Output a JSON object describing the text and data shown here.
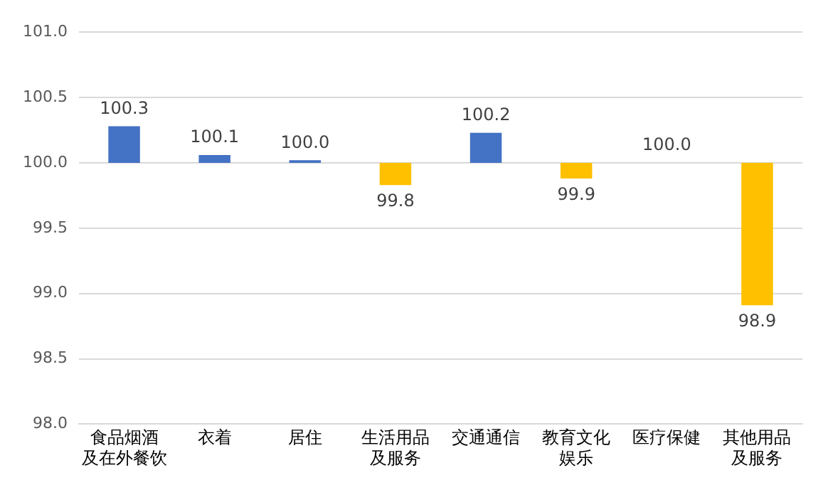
{
  "chart_data": {
    "type": "bar",
    "categories": [
      "食品烟酒及在外餐饮",
      "衣着",
      "居住",
      "生活用品及服务",
      "交通通信",
      "教育文化娱乐",
      "医疗保健",
      "其他用品及服务"
    ],
    "base": [
      100,
      100,
      100,
      100,
      100,
      100,
      null,
      100
    ],
    "values": [
      0.28,
      0.06,
      0.02,
      -0.17,
      0.23,
      -0.12,
      null,
      -1.09
    ],
    "colors": [
      "#4472c4",
      "#4472c4",
      "#4472c4",
      "#ffc000",
      "#4472c4",
      "#ffc000",
      "#4472c4",
      "#ffc000"
    ],
    "value_labels": [
      "100.3",
      "100.1",
      "100.0",
      "99.8",
      "100.2",
      "99.9",
      "100.0",
      "98.9"
    ],
    "ylim": [
      98,
      101
    ],
    "yticks": [
      {
        "value": 98,
        "label": "98.0"
      },
      {
        "value": 98.5,
        "label": "98.5"
      },
      {
        "value": 99,
        "label": "99.0"
      },
      {
        "value": 99.5,
        "label": "99.5"
      },
      {
        "value": 100,
        "label": "100.0"
      },
      {
        "value": 100.5,
        "label": "100.5"
      },
      {
        "value": 101,
        "label": "101.0"
      }
    ],
    "grid": "y",
    "legend": false
  }
}
